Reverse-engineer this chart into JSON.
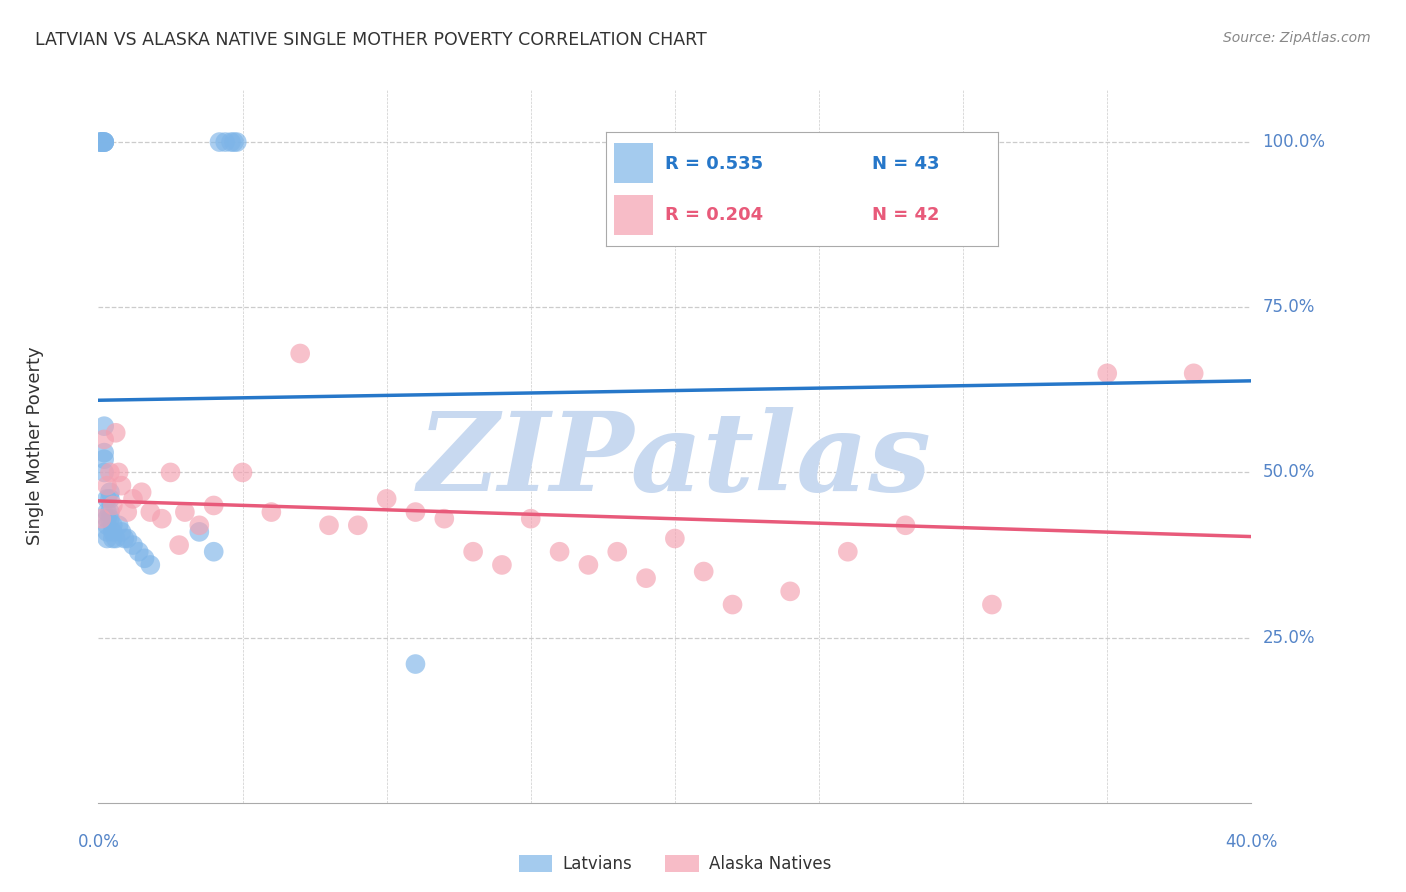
{
  "title": "LATVIAN VS ALASKA NATIVE SINGLE MOTHER POVERTY CORRELATION CHART",
  "source": "Source: ZipAtlas.com",
  "ylabel": "Single Mother Poverty",
  "xlim": [
    0.0,
    0.4
  ],
  "ylim": [
    0.0,
    1.08
  ],
  "ytick_labels": [
    "100.0%",
    "75.0%",
    "50.0%",
    "25.0%"
  ],
  "ytick_values": [
    1.0,
    0.75,
    0.5,
    0.25
  ],
  "xtick_labels": [
    "0.0%",
    "40.0%"
  ],
  "xtick_values": [
    0.0,
    0.4
  ],
  "latvian_color": "#7EB5E8",
  "alaska_color": "#F4A0B0",
  "latvian_line_color": "#2677C9",
  "alaska_line_color": "#E85A7A",
  "watermark": "ZIPatlas",
  "watermark_color": "#C8D9F0",
  "background": "#FFFFFF",
  "grid_color": "#CCCCCC",
  "axis_label_color": "#5585C8",
  "title_color": "#333333",
  "legend_r1_label": "R = 0.535",
  "legend_n1_label": "N = 43",
  "legend_r2_label": "R = 0.204",
  "legend_n2_label": "N = 42",
  "latvian_x": [
    0.001,
    0.001,
    0.001,
    0.001,
    0.001,
    0.002,
    0.002,
    0.002,
    0.002,
    0.002,
    0.002,
    0.002,
    0.002,
    0.003,
    0.003,
    0.003,
    0.003,
    0.003,
    0.003,
    0.004,
    0.004,
    0.004,
    0.004,
    0.005,
    0.005,
    0.005,
    0.006,
    0.007,
    0.008,
    0.009,
    0.01,
    0.012,
    0.014,
    0.016,
    0.018,
    0.035,
    0.04,
    0.042,
    0.044,
    0.046,
    0.047,
    0.048,
    0.11
  ],
  "latvian_y": [
    1.0,
    1.0,
    1.0,
    1.0,
    1.0,
    1.0,
    1.0,
    1.0,
    1.0,
    0.57,
    0.53,
    0.52,
    0.5,
    0.46,
    0.44,
    0.43,
    0.42,
    0.41,
    0.4,
    0.47,
    0.46,
    0.44,
    0.43,
    0.42,
    0.41,
    0.4,
    0.4,
    0.42,
    0.41,
    0.4,
    0.4,
    0.39,
    0.38,
    0.37,
    0.36,
    0.41,
    0.38,
    1.0,
    1.0,
    1.0,
    1.0,
    1.0,
    0.21
  ],
  "alaska_x": [
    0.001,
    0.002,
    0.003,
    0.004,
    0.005,
    0.006,
    0.007,
    0.008,
    0.01,
    0.012,
    0.015,
    0.018,
    0.022,
    0.025,
    0.028,
    0.03,
    0.035,
    0.04,
    0.05,
    0.06,
    0.07,
    0.08,
    0.09,
    0.1,
    0.11,
    0.12,
    0.13,
    0.14,
    0.15,
    0.16,
    0.17,
    0.18,
    0.19,
    0.2,
    0.21,
    0.22,
    0.24,
    0.26,
    0.28,
    0.31,
    0.35,
    0.38
  ],
  "alaska_y": [
    0.43,
    0.55,
    0.48,
    0.5,
    0.45,
    0.56,
    0.5,
    0.48,
    0.44,
    0.46,
    0.47,
    0.44,
    0.43,
    0.5,
    0.39,
    0.44,
    0.42,
    0.45,
    0.5,
    0.44,
    0.68,
    0.42,
    0.42,
    0.46,
    0.44,
    0.43,
    0.38,
    0.36,
    0.43,
    0.38,
    0.36,
    0.38,
    0.34,
    0.4,
    0.35,
    0.3,
    0.32,
    0.38,
    0.42,
    0.3,
    0.65,
    0.65
  ]
}
